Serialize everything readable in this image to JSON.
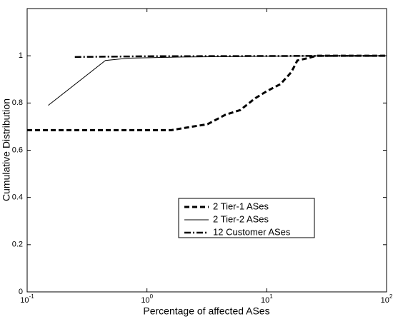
{
  "chart_data": {
    "type": "line",
    "xlabel": "Percentage of affected ASes",
    "ylabel": "Cumulative Distribution",
    "xscale": "log",
    "xlim": [
      0.1,
      100
    ],
    "xticks": [
      {
        "value": 0.1,
        "label": "10^-1"
      },
      {
        "value": 1,
        "label": "10^0"
      },
      {
        "value": 10,
        "label": "10^1"
      },
      {
        "value": 100,
        "label": "10^2"
      }
    ],
    "ylim": [
      0,
      1.2
    ],
    "yticks": [
      0,
      0.2,
      0.4,
      0.6,
      0.8,
      1
    ],
    "grid": false,
    "legend": "lower right",
    "series": [
      {
        "name": "2 Tier-1 ASes",
        "color": "#000000",
        "linestyle": "dashed",
        "x": [
          0.1,
          1.6,
          2.4,
          3.2,
          4.5,
          6,
          8,
          10,
          13,
          16,
          18,
          22,
          26,
          100
        ],
        "values": [
          0.685,
          0.685,
          0.7,
          0.71,
          0.75,
          0.77,
          0.82,
          0.85,
          0.88,
          0.93,
          0.98,
          0.99,
          1.0,
          1.0
        ]
      },
      {
        "name": "2 Tier-2 ASes",
        "color": "#000000",
        "linestyle": "solid",
        "x": [
          0.15,
          0.45,
          0.7,
          2,
          30,
          100
        ],
        "values": [
          0.79,
          0.98,
          0.99,
          0.995,
          1.0,
          1.0
        ]
      },
      {
        "name": "12 Customer ASes",
        "color": "#000000",
        "linestyle": "dashdot",
        "x": [
          0.25,
          1,
          100
        ],
        "values": [
          0.995,
          0.998,
          1.0
        ]
      }
    ]
  }
}
